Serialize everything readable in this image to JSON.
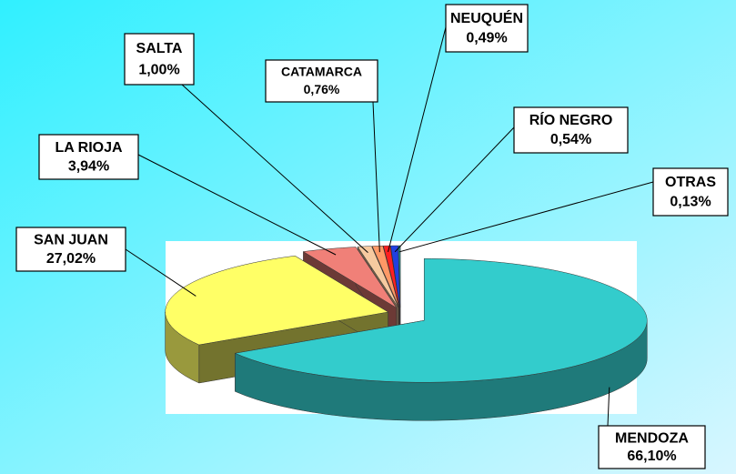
{
  "chart_data": {
    "type": "pie3d",
    "categories": [
      "MENDOZA",
      "SAN JUAN",
      "LA RIOJA",
      "SALTA",
      "CATAMARCA",
      "NEUQUÉN",
      "RÍO NEGRO",
      "OTRAS"
    ],
    "values": [
      66.1,
      27.02,
      3.94,
      1.0,
      0.76,
      0.49,
      0.54,
      0.13
    ],
    "value_labels": [
      "66,10%",
      "27,02%",
      "3,94%",
      "1,00%",
      "0,76%",
      "0,49%",
      "0,54%",
      "0,13%"
    ],
    "colors": [
      "#33cccc",
      "#ffff66",
      "#f08078",
      "#f6caa0",
      "#ff9966",
      "#ff2020",
      "#2040e0",
      "#20a0a0"
    ]
  }
}
